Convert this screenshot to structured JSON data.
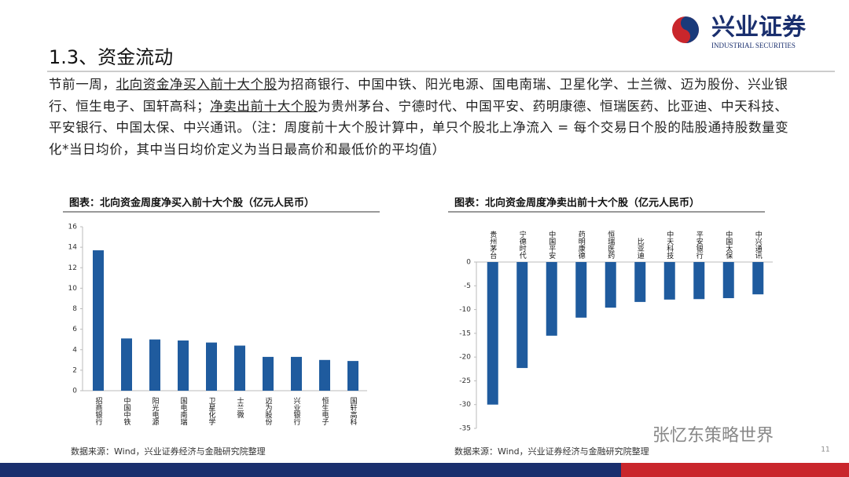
{
  "header": {
    "title": "1.3、资金流动",
    "logo": "兴业证券",
    "logo_en": "INDUSTRIAL SECURITIES"
  },
  "paragraph": [
    {
      "text": "节前一周，"
    },
    {
      "text": "北向资金净买入前十大个股",
      "underline": true
    },
    {
      "text": "为招商银行、中国中铁、阳光电源、国电南瑞、卫星化学、士兰微、迈为股份、兴业银行、恒生电子、国轩高科；"
    },
    {
      "text": "净卖出前十大个股",
      "underline": true
    },
    {
      "text": "为贵州茅台、宁德时代、中国平安、药明康德、恒瑞医药、比亚迪、中天科技、平安银行、中国太保、中兴通讯。（注：周度前十大个股计算中，单只个股北上净流入 = 每个交易日个股的陆股通持股数量变化*当日均价，其中当日均价定义为当日最高价和最低价的平均值）"
    }
  ],
  "chart_data": [
    {
      "type": "bar",
      "title": "图表：北向资金周度净买入前十大个股（亿元人民币）",
      "categories": [
        "招商银行",
        "中国中铁",
        "阳光电源",
        "国电南瑞",
        "卫星化学",
        "士兰微",
        "迈为股份",
        "兴业银行",
        "恒生电子",
        "国轩高科"
      ],
      "values": [
        13.7,
        5.1,
        5.0,
        4.9,
        4.7,
        4.4,
        3.3,
        3.3,
        3.0,
        2.9
      ],
      "color": "#1f5b9e",
      "ylim": [
        0,
        16
      ],
      "yticks": [
        0,
        2,
        4,
        6,
        8,
        10,
        12,
        14,
        16
      ],
      "source": "数据来源：Wind，兴业证券经济与金融研究院整理"
    },
    {
      "type": "bar",
      "title": "图表：北向资金周度净卖出前十大个股（亿元人民币）",
      "categories": [
        "贵州茅台",
        "宁德时代",
        "中国平安",
        "药明康德",
        "恒瑞医药",
        "比亚迪",
        "中天科技",
        "平安银行",
        "中国太保",
        "中兴通讯"
      ],
      "values": [
        -30.0,
        -22.3,
        -15.5,
        -11.7,
        -9.6,
        -8.4,
        -7.9,
        -7.8,
        -7.6,
        -6.8
      ],
      "color": "#1f5b9e",
      "ylim": [
        -35,
        0
      ],
      "yticks": [
        0,
        -5,
        -10,
        -15,
        -20,
        -25,
        -30,
        -35
      ],
      "source": "数据来源：Wind，兴业证券经济与金融研究院整理"
    }
  ],
  "watermark": "张忆东策略世界",
  "page_number": 11
}
